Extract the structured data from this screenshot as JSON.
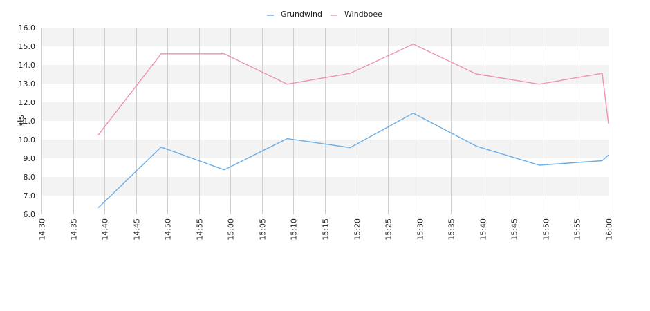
{
  "chart_data": {
    "type": "line",
    "title": "",
    "xlabel": "",
    "ylabel": "kts",
    "ylim": [
      6.0,
      16.0
    ],
    "y_ticks": [
      "6.0",
      "7.0",
      "8.0",
      "9.0",
      "10.0",
      "11.0",
      "12.0",
      "13.0",
      "14.0",
      "15.0",
      "16.0"
    ],
    "x_ticks": [
      "14:30",
      "14:35",
      "14:40",
      "14:45",
      "14:50",
      "14:55",
      "15:00",
      "15:05",
      "15:10",
      "15:15",
      "15:20",
      "15:25",
      "15:30",
      "15:35",
      "15:40",
      "15:45",
      "15:50",
      "15:55",
      "16:00"
    ],
    "xlim": [
      "14:30",
      "16:00"
    ],
    "grid": "vertical lines, alternating horizontal bands",
    "legend_position": "top-center",
    "series": [
      {
        "name": "Grundwind",
        "color": "#6aaee8",
        "x": [
          "14:39",
          "14:49",
          "14:59",
          "15:09",
          "15:19",
          "15:29",
          "15:39",
          "15:49",
          "15:59",
          "16:00"
        ],
        "values": [
          6.35,
          9.6,
          8.38,
          10.05,
          9.57,
          11.42,
          9.65,
          8.63,
          8.87,
          9.18
        ]
      },
      {
        "name": "Windboee",
        "color": "#ee8fb9",
        "x": [
          "14:39",
          "14:49",
          "14:59",
          "15:09",
          "15:19",
          "15:29",
          "15:39",
          "15:49",
          "15:59",
          "16:00"
        ],
        "values": [
          10.25,
          14.6,
          14.6,
          12.97,
          13.55,
          15.12,
          13.52,
          12.97,
          13.55,
          10.85
        ]
      }
    ]
  }
}
